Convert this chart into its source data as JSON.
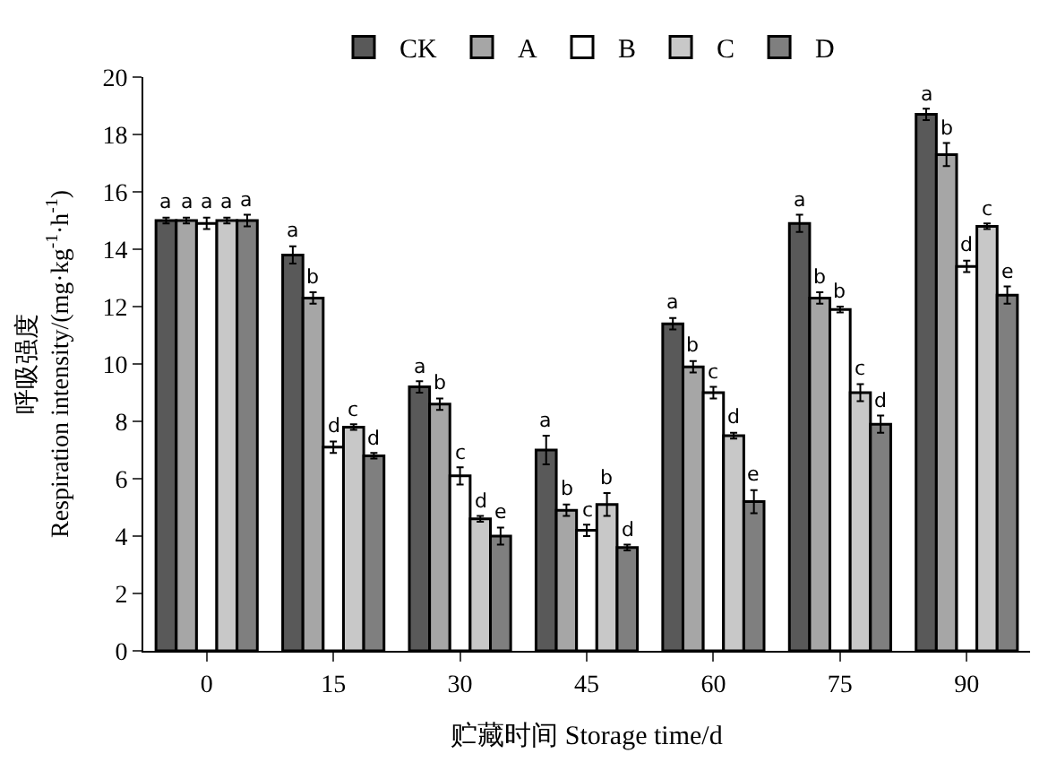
{
  "chart_data": {
    "type": "bar",
    "xlabel": "贮藏时间 Storage time/d",
    "ylabel": "呼吸强度\nRespiration intensity/(mg·kg$^{-1}$·h$^{-1}$)",
    "categories": [
      "0",
      "15",
      "30",
      "45",
      "60",
      "75",
      "90"
    ],
    "ylim": [
      0,
      20
    ],
    "yticks": [
      0,
      2,
      4,
      6,
      8,
      10,
      12,
      14,
      16,
      18,
      20
    ],
    "legend": "top",
    "series": [
      {
        "name": "CK",
        "color": "#595959",
        "values": [
          15.0,
          13.8,
          9.2,
          7.0,
          11.4,
          14.9,
          18.7
        ],
        "errors": [
          0.1,
          0.3,
          0.2,
          0.5,
          0.2,
          0.3,
          0.2
        ],
        "value_labels": [
          "a",
          "a",
          "a",
          "a",
          "a",
          "a",
          "a"
        ]
      },
      {
        "name": "A",
        "color": "#a6a6a6",
        "values": [
          15.0,
          12.3,
          8.6,
          4.9,
          9.9,
          12.3,
          17.3
        ],
        "errors": [
          0.1,
          0.2,
          0.2,
          0.2,
          0.2,
          0.2,
          0.4
        ],
        "value_labels": [
          "a",
          "b",
          "b",
          "b",
          "b",
          "b",
          "b"
        ]
      },
      {
        "name": "B",
        "color": "#ffffff",
        "values": [
          14.9,
          7.1,
          6.1,
          4.2,
          9.0,
          11.9,
          13.4
        ],
        "errors": [
          0.2,
          0.2,
          0.3,
          0.2,
          0.2,
          0.1,
          0.2
        ],
        "value_labels": [
          "a",
          "d",
          "c",
          "c",
          "c",
          "b",
          "d"
        ]
      },
      {
        "name": "C",
        "color": "#c8c8c8",
        "values": [
          15.0,
          7.8,
          4.6,
          5.1,
          7.5,
          9.0,
          14.8
        ],
        "errors": [
          0.1,
          0.1,
          0.1,
          0.4,
          0.1,
          0.3,
          0.1
        ],
        "value_labels": [
          "a",
          "c",
          "d",
          "b",
          "d",
          "c",
          "c"
        ]
      },
      {
        "name": "D",
        "color": "#7f7f7f",
        "values": [
          15.0,
          6.8,
          4.0,
          3.6,
          5.2,
          7.9,
          12.4
        ],
        "errors": [
          0.2,
          0.1,
          0.3,
          0.1,
          0.4,
          0.3,
          0.3
        ],
        "value_labels": [
          "a",
          "d",
          "e",
          "d",
          "e",
          "d",
          "e"
        ]
      }
    ]
  }
}
